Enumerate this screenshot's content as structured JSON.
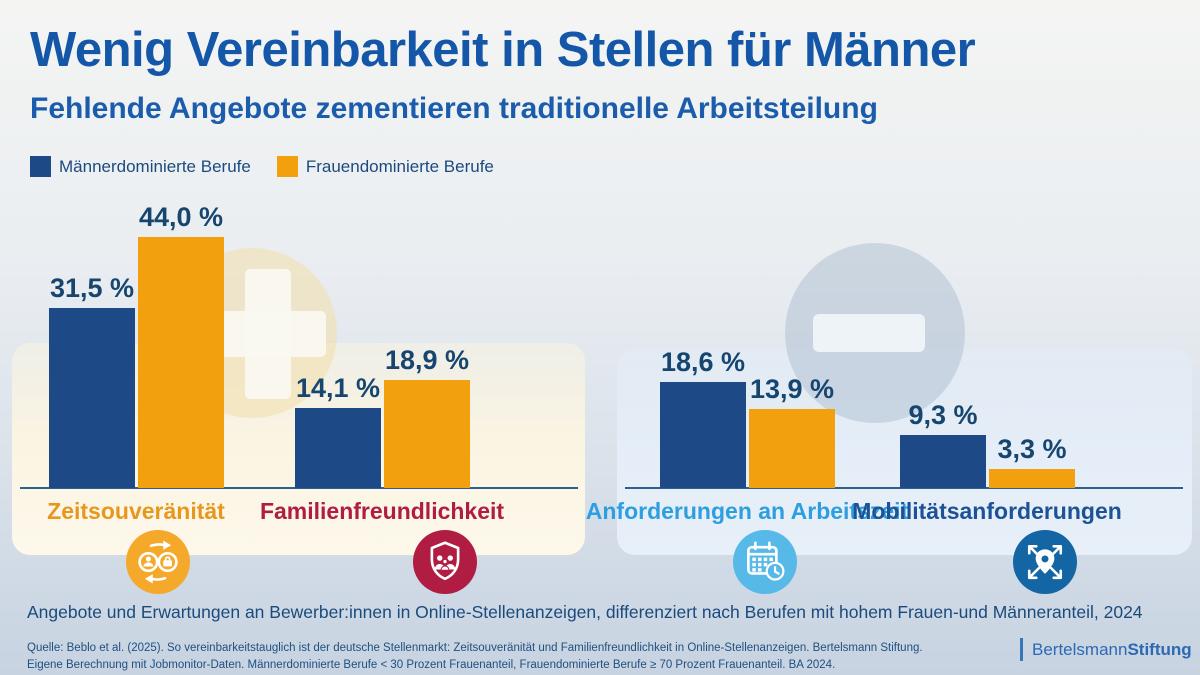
{
  "title": "Wenig Vereinbarkeit in Stellen für Männer",
  "subtitle": "Fehlende Angebote zementieren traditionelle Arbeitsteilung",
  "legend": [
    {
      "label": "Männerdominierte Berufe",
      "color": "#1d4a86"
    },
    {
      "label": "Frauendominierte Berufe",
      "color": "#f2a00d"
    }
  ],
  "chart_data": {
    "type": "bar",
    "unit": "%",
    "series": [
      {
        "name": "Männerdominierte Berufe",
        "color": "#1d4a86",
        "values": [
          31.5,
          14.1,
          18.6,
          9.3
        ]
      },
      {
        "name": "Frauendominierte Berufe",
        "color": "#f2a00d",
        "values": [
          44.0,
          18.9,
          13.9,
          3.3
        ]
      }
    ],
    "categories": [
      "Zeitsouveränität",
      "Familienfreundlichkeit",
      "Anforderungen an Arbeitszeit",
      "Mobilitätsanforderungen"
    ],
    "ylim": [
      0,
      50
    ],
    "grid": false,
    "legend_position": "top-left",
    "groups": [
      {
        "category": "Zeitsouveränität",
        "values": [
          31.5,
          44.0
        ],
        "value_labels": [
          "31,5 %",
          "44,0 %"
        ],
        "category_color": "#e8971d",
        "icon": "work-life-exchange",
        "icon_color": "#f5a92b",
        "panel": "offers"
      },
      {
        "category": "Familienfreundlichkeit",
        "values": [
          14.1,
          18.9
        ],
        "value_labels": [
          "14,1 %",
          "18,9 %"
        ],
        "category_color": "#b11c42",
        "icon": "family-shield",
        "icon_color": "#b11c42",
        "panel": "offers"
      },
      {
        "category": "Anforderungen an Arbeitszeit",
        "values": [
          18.6,
          13.9
        ],
        "value_labels": [
          "18,6 %",
          "13,9 %"
        ],
        "category_color": "#2d9fe0",
        "icon": "calendar-clock",
        "icon_color": "#56b9e8",
        "panel": "requirements"
      },
      {
        "category": "Mobilitätsanforderungen",
        "values": [
          9.3,
          3.3
        ],
        "value_labels": [
          "9,3 %",
          "3,3 %"
        ],
        "category_color": "#1d5296",
        "icon": "mobility-pin",
        "icon_color": "#1365a4",
        "panel": "requirements"
      }
    ],
    "panel_symbols": {
      "offers": "plus",
      "requirements": "minus"
    }
  },
  "caption": "Angebote und Erwartungen an Bewerber:innen in Online-Stellenanzeigen, differenziert nach Berufen mit hohem Frauen-und Männeranteil, 2024",
  "source_line1": "Quelle: Beblo et al. (2025). So vereinbarkeitstauglich ist der deutsche Stellenmarkt: Zeitsouveränität und Familienfreundlichkeit in Online-Stellenanzeigen. Bertelsmann Stiftung.",
  "source_line2": "Eigene Berechnung mit Jobmonitor-Daten. Männerdominierte Berufe < 30 Prozent Frauenanteil, Frauendominierte Berufe ≥ 70 Prozent Frauenanteil. BA 2024.",
  "logo": {
    "name": "Bertelsmann",
    "bold": "Stiftung"
  }
}
